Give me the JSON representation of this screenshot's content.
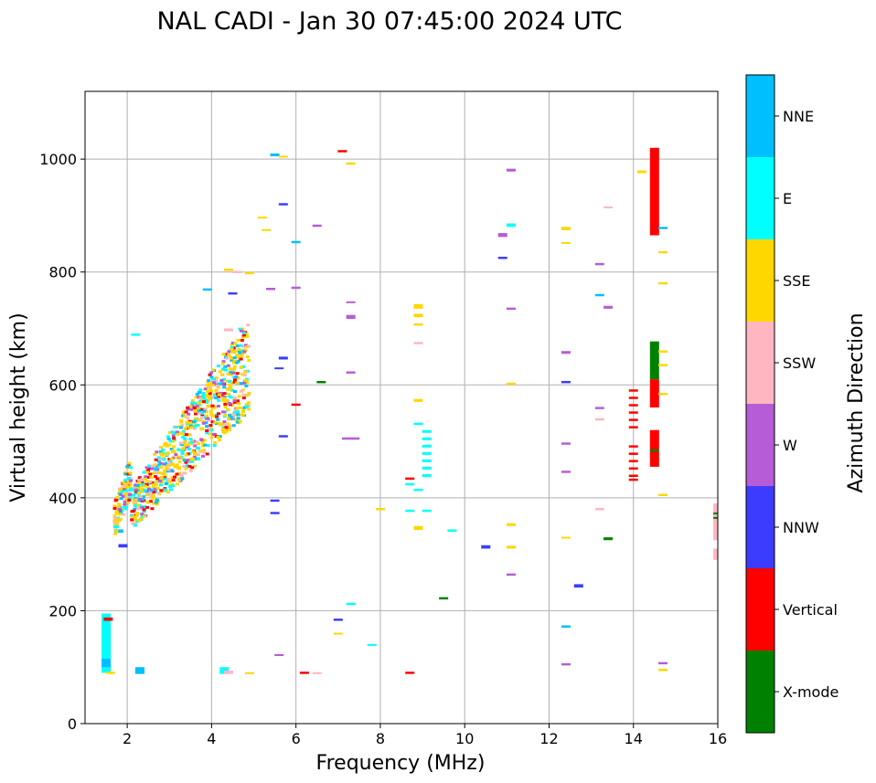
{
  "chart_data": {
    "type": "scatter",
    "title": "NAL CADI - Jan 30 07:45:00 2024 UTC",
    "xlabel": "Frequency (MHz)",
    "ylabel": "Virtual height (km)",
    "xlim": [
      1,
      16
    ],
    "ylim": [
      0,
      1120
    ],
    "xticks": [
      2,
      4,
      6,
      8,
      10,
      12,
      14,
      16
    ],
    "yticks": [
      0,
      200,
      400,
      600,
      800,
      1000
    ],
    "grid": true,
    "colorbar": {
      "label": "Azimuth Direction",
      "categories": [
        {
          "name": "X-mode",
          "color": "#008000"
        },
        {
          "name": "Vertical",
          "color": "#ff0000"
        },
        {
          "name": "NNW",
          "color": "#3c3cff"
        },
        {
          "name": "W",
          "color": "#b65cd6"
        },
        {
          "name": "SSW",
          "color": "#ffb6c1"
        },
        {
          "name": "SSE",
          "color": "#ffd700"
        },
        {
          "name": "E",
          "color": "#00ffff"
        },
        {
          "name": "NNE",
          "color": "#00bfff"
        }
      ]
    },
    "echoes": [
      {
        "f": 14.5,
        "h0": 865,
        "h1": 1020,
        "c": "Vertical"
      },
      {
        "f": 14.5,
        "h0": 560,
        "h1": 610,
        "c": "Vertical"
      },
      {
        "f": 14.5,
        "h0": 610,
        "h1": 677,
        "c": "X-mode"
      },
      {
        "f": 14.5,
        "h0": 455,
        "h1": 520,
        "c": "Vertical"
      },
      {
        "f": 14.5,
        "h0": 482,
        "h1": 486,
        "c": "X-mode"
      },
      {
        "f": 16.0,
        "h0": 325,
        "h1": 390,
        "c": "SSW"
      },
      {
        "f": 16.0,
        "h0": 290,
        "h1": 310,
        "c": "SSW"
      },
      {
        "f": 16.0,
        "h0": 363,
        "h1": 366,
        "c": "X-mode"
      },
      {
        "f": 16.0,
        "h0": 372,
        "h1": 374,
        "c": "X-mode"
      },
      {
        "f": 14.0,
        "h0": 588,
        "h1": 592,
        "c": "Vertical"
      },
      {
        "f": 14.0,
        "h0": 575,
        "h1": 579,
        "c": "Vertical"
      },
      {
        "f": 14.0,
        "h0": 562,
        "h1": 566,
        "c": "Vertical"
      },
      {
        "f": 14.0,
        "h0": 549,
        "h1": 553,
        "c": "Vertical"
      },
      {
        "f": 14.0,
        "h0": 536,
        "h1": 540,
        "c": "Vertical"
      },
      {
        "f": 14.0,
        "h0": 523,
        "h1": 527,
        "c": "Vertical"
      },
      {
        "f": 14.0,
        "h0": 489,
        "h1": 493,
        "c": "Vertical"
      },
      {
        "f": 14.0,
        "h0": 476,
        "h1": 480,
        "c": "Vertical"
      },
      {
        "f": 14.0,
        "h0": 463,
        "h1": 467,
        "c": "Vertical"
      },
      {
        "f": 14.0,
        "h0": 450,
        "h1": 454,
        "c": "Vertical"
      },
      {
        "f": 14.0,
        "h0": 437,
        "h1": 441,
        "c": "Vertical"
      },
      {
        "f": 14.0,
        "h0": 430,
        "h1": 434,
        "c": "Vertical"
      },
      {
        "f": 9.1,
        "h0": 515,
        "h1": 520,
        "c": "E"
      },
      {
        "f": 9.1,
        "h0": 502,
        "h1": 507,
        "c": "E"
      },
      {
        "f": 9.1,
        "h0": 489,
        "h1": 494,
        "c": "E"
      },
      {
        "f": 9.1,
        "h0": 476,
        "h1": 481,
        "c": "E"
      },
      {
        "f": 9.1,
        "h0": 463,
        "h1": 468,
        "c": "E"
      },
      {
        "f": 9.1,
        "h0": 450,
        "h1": 455,
        "c": "E"
      },
      {
        "f": 9.1,
        "h0": 437,
        "h1": 442,
        "c": "E"
      },
      {
        "f": 8.9,
        "h0": 529,
        "h1": 533,
        "c": "E"
      },
      {
        "f": 8.9,
        "h0": 412,
        "h1": 416,
        "c": "E"
      },
      {
        "f": 8.7,
        "h0": 422,
        "h1": 426,
        "c": "E"
      },
      {
        "f": 8.7,
        "h0": 432,
        "h1": 436,
        "c": "Vertical"
      },
      {
        "f": 8.7,
        "h0": 375,
        "h1": 379,
        "c": "E"
      },
      {
        "f": 9.1,
        "h0": 375,
        "h1": 379,
        "c": "E"
      },
      {
        "f": 8.9,
        "h0": 735,
        "h1": 743,
        "c": "SSE"
      },
      {
        "f": 8.9,
        "h0": 720,
        "h1": 726,
        "c": "SSE"
      },
      {
        "f": 8.9,
        "h0": 705,
        "h1": 709,
        "c": "SSE"
      },
      {
        "f": 8.9,
        "h0": 672,
        "h1": 676,
        "c": "SSW"
      },
      {
        "f": 8.9,
        "h0": 570,
        "h1": 575,
        "c": "SSE"
      },
      {
        "f": 8.9,
        "h0": 343,
        "h1": 350,
        "c": "SSE"
      },
      {
        "f": 9.7,
        "h0": 340,
        "h1": 344,
        "c": "E"
      },
      {
        "f": 9.5,
        "h0": 220,
        "h1": 224,
        "c": "X-mode"
      },
      {
        "f": 8.7,
        "h0": 88,
        "h1": 92,
        "c": "Vertical"
      },
      {
        "f": 8.0,
        "h0": 378,
        "h1": 382,
        "c": "SSE"
      },
      {
        "f": 10.5,
        "h0": 310,
        "h1": 316,
        "c": "NNW"
      },
      {
        "f": 10.9,
        "h0": 862,
        "h1": 869,
        "c": "W"
      },
      {
        "f": 10.9,
        "h0": 823,
        "h1": 827,
        "c": "NNW"
      },
      {
        "f": 11.1,
        "h0": 978,
        "h1": 983,
        "c": "W"
      },
      {
        "f": 11.1,
        "h0": 880,
        "h1": 886,
        "c": "E"
      },
      {
        "f": 11.1,
        "h0": 733,
        "h1": 737,
        "c": "W"
      },
      {
        "f": 11.1,
        "h0": 600,
        "h1": 604,
        "c": "SSE"
      },
      {
        "f": 11.1,
        "h0": 350,
        "h1": 355,
        "c": "SSE"
      },
      {
        "f": 11.1,
        "h0": 310,
        "h1": 315,
        "c": "SSE"
      },
      {
        "f": 11.1,
        "h0": 262,
        "h1": 266,
        "c": "W"
      },
      {
        "f": 12.4,
        "h0": 874,
        "h1": 880,
        "c": "SSE"
      },
      {
        "f": 12.4,
        "h0": 850,
        "h1": 853,
        "c": "SSE"
      },
      {
        "f": 12.4,
        "h0": 655,
        "h1": 660,
        "c": "W"
      },
      {
        "f": 12.4,
        "h0": 603,
        "h1": 607,
        "c": "NNW"
      },
      {
        "f": 12.4,
        "h0": 494,
        "h1": 498,
        "c": "W"
      },
      {
        "f": 12.4,
        "h0": 444,
        "h1": 448,
        "c": "W"
      },
      {
        "f": 12.4,
        "h0": 328,
        "h1": 331,
        "c": "SSE"
      },
      {
        "f": 12.4,
        "h0": 170,
        "h1": 174,
        "c": "NNE"
      },
      {
        "f": 12.4,
        "h0": 103,
        "h1": 107,
        "c": "W"
      },
      {
        "f": 12.7,
        "h0": 241,
        "h1": 247,
        "c": "NNW"
      },
      {
        "f": 13.2,
        "h0": 812,
        "h1": 816,
        "c": "W"
      },
      {
        "f": 13.2,
        "h0": 757,
        "h1": 761,
        "c": "NNE"
      },
      {
        "f": 13.2,
        "h0": 557,
        "h1": 561,
        "c": "W"
      },
      {
        "f": 13.2,
        "h0": 537,
        "h1": 541,
        "c": "SSW"
      },
      {
        "f": 13.2,
        "h0": 378,
        "h1": 382,
        "c": "SSW"
      },
      {
        "f": 13.4,
        "h0": 913,
        "h1": 916,
        "c": "SSW"
      },
      {
        "f": 13.4,
        "h0": 735,
        "h1": 740,
        "c": "W"
      },
      {
        "f": 13.4,
        "h0": 325,
        "h1": 330,
        "c": "X-mode"
      },
      {
        "f": 14.2,
        "h0": 975,
        "h1": 980,
        "c": "SSE"
      },
      {
        "f": 14.7,
        "h0": 876,
        "h1": 880,
        "c": "NNE"
      },
      {
        "f": 14.7,
        "h0": 833,
        "h1": 837,
        "c": "SSE"
      },
      {
        "f": 14.7,
        "h0": 778,
        "h1": 782,
        "c": "SSE"
      },
      {
        "f": 14.7,
        "h0": 657,
        "h1": 661,
        "c": "SSE"
      },
      {
        "f": 14.7,
        "h0": 633,
        "h1": 637,
        "c": "SSE"
      },
      {
        "f": 14.7,
        "h0": 582,
        "h1": 586,
        "c": "SSE"
      },
      {
        "f": 14.7,
        "h0": 403,
        "h1": 407,
        "c": "SSE"
      },
      {
        "f": 14.7,
        "h0": 105,
        "h1": 109,
        "c": "W"
      },
      {
        "f": 14.7,
        "h0": 93,
        "h1": 97,
        "c": "SSE"
      },
      {
        "f": 5.5,
        "h0": 1005,
        "h1": 1010,
        "c": "NNE"
      },
      {
        "f": 5.7,
        "h0": 1003,
        "h1": 1006,
        "c": "SSE"
      },
      {
        "f": 7.1,
        "h0": 1012,
        "h1": 1016,
        "c": "Vertical"
      },
      {
        "f": 7.3,
        "h0": 990,
        "h1": 994,
        "c": "SSE"
      },
      {
        "f": 5.7,
        "h0": 918,
        "h1": 922,
        "c": "NNW"
      },
      {
        "f": 5.2,
        "h0": 895,
        "h1": 898,
        "c": "SSE"
      },
      {
        "f": 5.3,
        "h0": 873,
        "h1": 876,
        "c": "SSE"
      },
      {
        "f": 6.0,
        "h0": 851,
        "h1": 855,
        "c": "NNE"
      },
      {
        "f": 6.5,
        "h0": 880,
        "h1": 884,
        "c": "W"
      },
      {
        "f": 6.0,
        "h0": 770,
        "h1": 774,
        "c": "W"
      },
      {
        "f": 5.4,
        "h0": 768,
        "h1": 772,
        "c": "W"
      },
      {
        "f": 7.3,
        "h0": 745,
        "h1": 748,
        "c": "W"
      },
      {
        "f": 7.3,
        "h0": 717,
        "h1": 724,
        "c": "W"
      },
      {
        "f": 7.3,
        "h0": 620,
        "h1": 624,
        "c": "W"
      },
      {
        "f": 5.7,
        "h0": 645,
        "h1": 650,
        "c": "NNW"
      },
      {
        "f": 5.6,
        "h0": 628,
        "h1": 631,
        "c": "NNW"
      },
      {
        "f": 6.6,
        "h0": 603,
        "h1": 607,
        "c": "X-mode"
      },
      {
        "f": 6.0,
        "h0": 563,
        "h1": 567,
        "c": "Vertical"
      },
      {
        "f": 5.7,
        "h0": 507,
        "h1": 511,
        "c": "NNW"
      },
      {
        "f": 7.2,
        "h0": 503,
        "h1": 507,
        "c": "W"
      },
      {
        "f": 7.4,
        "h0": 503,
        "h1": 507,
        "c": "W"
      },
      {
        "f": 5.5,
        "h0": 393,
        "h1": 397,
        "c": "NNW"
      },
      {
        "f": 5.5,
        "h0": 371,
        "h1": 375,
        "c": "NNW"
      },
      {
        "f": 7.3,
        "h0": 210,
        "h1": 214,
        "c": "E"
      },
      {
        "f": 7.0,
        "h0": 182,
        "h1": 186,
        "c": "NNW"
      },
      {
        "f": 7.0,
        "h0": 158,
        "h1": 161,
        "c": "SSE"
      },
      {
        "f": 7.8,
        "h0": 139,
        "h1": 141,
        "c": "E"
      },
      {
        "f": 5.6,
        "h0": 120,
        "h1": 123,
        "c": "W"
      },
      {
        "f": 6.2,
        "h0": 88,
        "h1": 92,
        "c": "Vertical"
      },
      {
        "f": 6.5,
        "h0": 88,
        "h1": 91,
        "c": "SSW"
      },
      {
        "f": 4.4,
        "h0": 802,
        "h1": 806,
        "c": "SSE"
      },
      {
        "f": 4.6,
        "h0": 798,
        "h1": 802,
        "c": "SSW"
      },
      {
        "f": 4.9,
        "h0": 796,
        "h1": 800,
        "c": "SSE"
      },
      {
        "f": 4.5,
        "h0": 760,
        "h1": 764,
        "c": "NNW"
      },
      {
        "f": 3.9,
        "h0": 767,
        "h1": 771,
        "c": "NNE"
      },
      {
        "f": 4.4,
        "h0": 695,
        "h1": 700,
        "c": "SSW"
      },
      {
        "f": 2.2,
        "h0": 687,
        "h1": 691,
        "c": "E"
      },
      {
        "f": 4.3,
        "h0": 88,
        "h1": 100,
        "c": "E"
      },
      {
        "f": 4.4,
        "h0": 88,
        "h1": 94,
        "c": "SSW"
      },
      {
        "f": 4.9,
        "h0": 88,
        "h1": 91,
        "c": "SSE"
      },
      {
        "f": 2.3,
        "h0": 88,
        "h1": 100,
        "c": "NNE"
      },
      {
        "f": 1.5,
        "h0": 90,
        "h1": 195,
        "c": "E"
      },
      {
        "f": 1.5,
        "h0": 100,
        "h1": 115,
        "c": "NNE"
      },
      {
        "f": 1.55,
        "h0": 182,
        "h1": 188,
        "c": "Vertical"
      },
      {
        "f": 1.6,
        "h0": 88,
        "h1": 92,
        "c": "SSE"
      },
      {
        "f": 1.9,
        "h0": 312,
        "h1": 318,
        "c": "NNW"
      },
      {
        "f": 1.8,
        "h0": 338,
        "h1": 344,
        "c": "NNE"
      }
    ]
  }
}
